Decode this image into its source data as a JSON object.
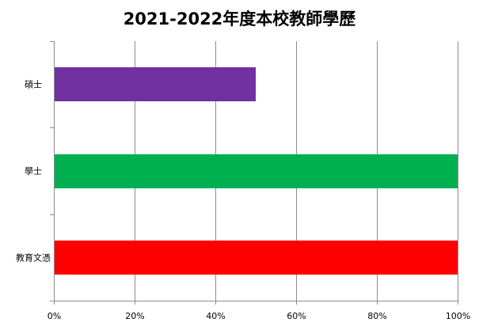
{
  "chart_data": {
    "type": "bar",
    "orientation": "horizontal",
    "title": "2021-2022年度本校教師學歷",
    "categories": [
      "碩士",
      "學士",
      "教育文憑"
    ],
    "values": [
      0.5,
      1.0,
      1.0
    ],
    "bar_colors": [
      "#7030a0",
      "#00b050",
      "#ff0000"
    ],
    "xlim": [
      0,
      1
    ],
    "x_ticks": [
      0,
      0.2,
      0.4,
      0.6,
      0.8,
      1.0
    ],
    "x_tick_labels": [
      "0%",
      "20%",
      "40%",
      "60%",
      "80%",
      "100%"
    ],
    "grid": true,
    "legend": "none"
  }
}
